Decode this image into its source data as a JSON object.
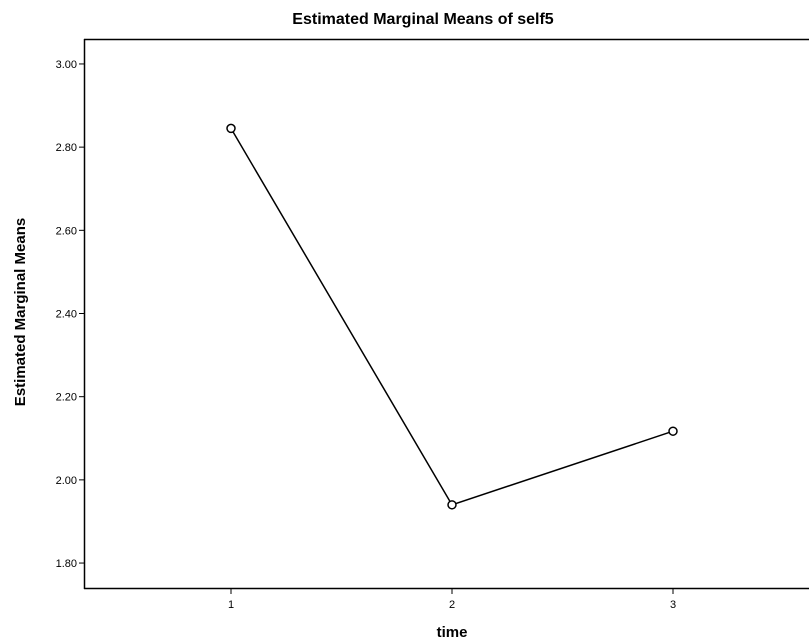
{
  "chart_data": {
    "type": "line",
    "title": "Estimated Marginal Means of self5",
    "xlabel": "time",
    "ylabel": "Estimated Marginal Means",
    "categories": [
      "1",
      "2",
      "3"
    ],
    "series": [
      {
        "values": [
          2.845,
          1.94,
          2.117
        ]
      }
    ],
    "ylim": [
      1.74,
      3.06
    ],
    "yticks": [
      "1.80",
      "2.00",
      "2.20",
      "2.40",
      "2.60",
      "2.80",
      "3.00"
    ],
    "grid": false,
    "marker": "open-circle",
    "line_color": "#000000"
  }
}
